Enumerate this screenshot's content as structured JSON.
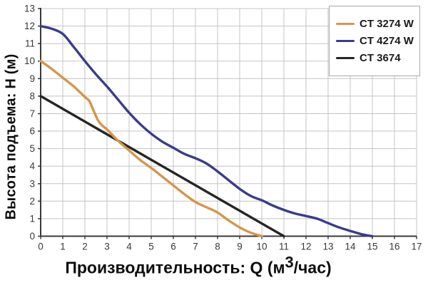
{
  "chart_data": {
    "type": "line",
    "title": "",
    "ylabel": "Высота подъема: H (м)",
    "xlabel_prefix": "Производительность: Q (м",
    "xlabel_sup": "3",
    "xlabel_suffix": "/час)",
    "xlim": [
      0,
      17
    ],
    "ylim": [
      0,
      13
    ],
    "x_ticks": [
      0,
      1,
      2,
      3,
      4,
      5,
      6,
      7,
      8,
      9,
      10,
      11,
      12,
      13,
      14,
      15,
      16,
      17
    ],
    "y_ticks": [
      0,
      1,
      2,
      3,
      4,
      5,
      6,
      7,
      8,
      9,
      10,
      11,
      12,
      13
    ],
    "grid": true,
    "legend_position": "top-right",
    "series": [
      {
        "name": "CT 3274 W",
        "color": "#D6954A",
        "points": [
          [
            0,
            10
          ],
          [
            0.5,
            9.55
          ],
          [
            1,
            9.05
          ],
          [
            1.5,
            8.55
          ],
          [
            2,
            7.95
          ],
          [
            2.2,
            7.72
          ],
          [
            2.4,
            7.15
          ],
          [
            2.6,
            6.6
          ],
          [
            2.8,
            6.3
          ],
          [
            3,
            6.1
          ],
          [
            3.5,
            5.45
          ],
          [
            4,
            4.9
          ],
          [
            4.5,
            4.35
          ],
          [
            5,
            3.9
          ],
          [
            5.5,
            3.4
          ],
          [
            6,
            2.9
          ],
          [
            6.5,
            2.4
          ],
          [
            7,
            1.95
          ],
          [
            7.5,
            1.65
          ],
          [
            8,
            1.35
          ],
          [
            8.5,
            0.9
          ],
          [
            9,
            0.5
          ],
          [
            9.5,
            0.2
          ],
          [
            10,
            0
          ]
        ]
      },
      {
        "name": "CT 4274 W",
        "color": "#3B3B8C",
        "points": [
          [
            0,
            12
          ],
          [
            0.5,
            11.85
          ],
          [
            1,
            11.55
          ],
          [
            1.5,
            10.8
          ],
          [
            2,
            10
          ],
          [
            2.5,
            9.25
          ],
          [
            3,
            8.55
          ],
          [
            3.5,
            7.8
          ],
          [
            4,
            7.05
          ],
          [
            4.5,
            6.4
          ],
          [
            5,
            5.85
          ],
          [
            5.5,
            5.4
          ],
          [
            6,
            5.05
          ],
          [
            6.5,
            4.7
          ],
          [
            7,
            4.45
          ],
          [
            7.5,
            4.15
          ],
          [
            8,
            3.7
          ],
          [
            8.5,
            3.2
          ],
          [
            9,
            2.7
          ],
          [
            9.5,
            2.3
          ],
          [
            10,
            2.05
          ],
          [
            10.5,
            1.75
          ],
          [
            11,
            1.5
          ],
          [
            11.5,
            1.3
          ],
          [
            12,
            1.15
          ],
          [
            12.5,
            1.0
          ],
          [
            13,
            0.75
          ],
          [
            13.5,
            0.5
          ],
          [
            14,
            0.3
          ],
          [
            14.5,
            0.12
          ],
          [
            15,
            0
          ]
        ]
      },
      {
        "name": "CT 3674",
        "color": "#252525",
        "points": [
          [
            0,
            8
          ],
          [
            11,
            0
          ]
        ]
      }
    ]
  },
  "colors": {
    "background": "#ffffff",
    "grid": "#c4c4c4",
    "axis": "#3a3a3a",
    "tick_text": "#383838",
    "title_text": "#0d0d0d",
    "legend_border": "#a9a9a9"
  }
}
